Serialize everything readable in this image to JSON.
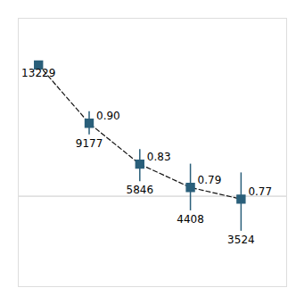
{
  "chart_data": {
    "type": "line",
    "x": [
      1,
      2,
      3,
      4,
      5
    ],
    "values": [
      1.0,
      0.9,
      0.83,
      0.79,
      0.77
    ],
    "err_upper": [
      0.0,
      0.02,
      0.025,
      0.04,
      0.045
    ],
    "err_lower": [
      0.0,
      0.02,
      0.03,
      0.04,
      0.055
    ],
    "data_labels": true,
    "value_labels": [
      null,
      "0.90",
      "0.83",
      "0.79",
      "0.77"
    ],
    "n": [
      13229,
      9177,
      5846,
      4408,
      3524
    ],
    "reference_y": 0.775,
    "xlim": [
      0.6,
      5.9
    ],
    "ylim": [
      0.62,
      1.08
    ],
    "tick_labels": false,
    "grid": false,
    "marker": "square",
    "line_style": "dashed",
    "color": "#2a5f7a"
  }
}
